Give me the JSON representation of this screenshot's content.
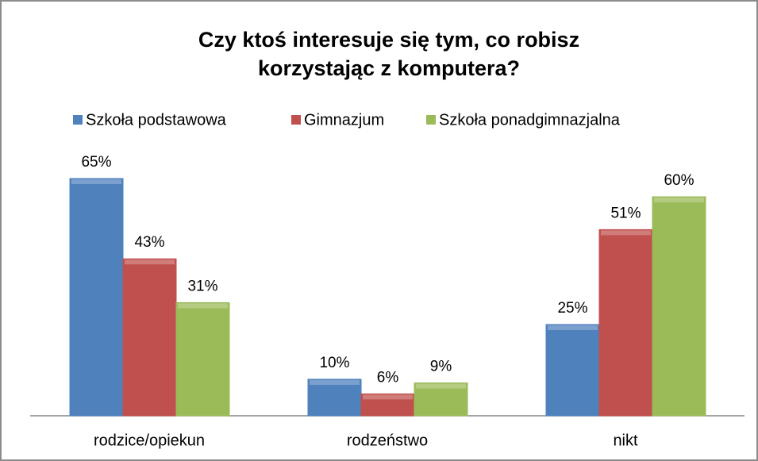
{
  "chart_data": {
    "type": "bar",
    "title": [
      "Czy ktoś interesuje się tym, co robisz",
      "korzystając z komputera?"
    ],
    "categories": [
      "rodzice/opiekun",
      "rodzeństwo",
      "nikt"
    ],
    "series": [
      {
        "name": "Szkoła podstawowa",
        "color": "#4f81bd",
        "values": [
          65,
          10,
          25
        ],
        "value_labels": [
          "65%",
          "10%",
          "25%"
        ]
      },
      {
        "name": "Gimnazjum",
        "color": "#c0504d",
        "values": [
          43,
          6,
          51
        ],
        "value_labels": [
          "43%",
          "6%",
          "51%"
        ]
      },
      {
        "name": "Szkoła ponadgimnazjalna",
        "color": "#9bbb59",
        "values": [
          31,
          9,
          60
        ],
        "value_labels": [
          "31%",
          "9%",
          "60%"
        ]
      }
    ],
    "legend": "top"
  }
}
